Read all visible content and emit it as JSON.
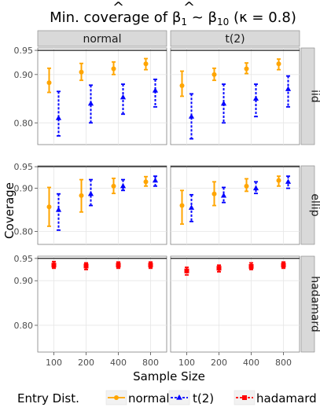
{
  "chart_data": {
    "type": "scatter",
    "title": "Min. coverage of β̂1 ~ β̂10 (κ = 0.8)",
    "title_parts": {
      "prefix": "Min. coverage of ",
      "beta": "β",
      "hat": "^",
      "sub_first": "1",
      "tilde": " ~ ",
      "sub_last": "10",
      "suffix": " (κ = 0.8)"
    },
    "xlabel": "Sample Size",
    "ylabel": "Coverage",
    "x_categories": [
      "100",
      "200",
      "400",
      "800"
    ],
    "ylim": [
      0.75,
      0.97
    ],
    "y_ticks": [
      0.8,
      0.9,
      0.95
    ],
    "y_tick_labels": [
      "0.80",
      "0.90",
      "0.95"
    ],
    "reference_line": 0.95,
    "grid": true,
    "columns": [
      "normal",
      "t(2)"
    ],
    "rows": [
      "iid",
      "ellip",
      "hadamard"
    ],
    "legend": {
      "title": "Entry Dist.",
      "position": "bottom",
      "entries": [
        {
          "name": "normal",
          "color": "#FFA500",
          "marker": "circle",
          "linestyle": "solid"
        },
        {
          "name": "t(2)",
          "color": "#0000FF",
          "marker": "triangle",
          "linestyle": "dashed"
        },
        {
          "name": "hadamard",
          "color": "#FF0000",
          "marker": "square",
          "linestyle": "dashed"
        }
      ]
    },
    "panels": [
      {
        "row": "iid",
        "col": "normal",
        "series": [
          {
            "name": "normal",
            "points": [
              [
                0.883,
                0.863,
                0.913
              ],
              [
                0.905,
                0.888,
                0.923
              ],
              [
                0.912,
                0.9,
                0.926
              ],
              [
                0.922,
                0.91,
                0.933
              ]
            ]
          },
          {
            "name": "t(2)",
            "points": [
              [
                0.81,
                0.773,
                0.865
              ],
              [
                0.84,
                0.8,
                0.878
              ],
              [
                0.853,
                0.818,
                0.88
              ],
              [
                0.867,
                0.833,
                0.89
              ]
            ]
          }
        ]
      },
      {
        "row": "iid",
        "col": "t(2)",
        "series": [
          {
            "name": "normal",
            "points": [
              [
                0.877,
                0.855,
                0.907
              ],
              [
                0.9,
                0.888,
                0.913
              ],
              [
                0.912,
                0.902,
                0.924
              ],
              [
                0.922,
                0.91,
                0.932
              ]
            ]
          },
          {
            "name": "t(2)",
            "points": [
              [
                0.813,
                0.767,
                0.86
              ],
              [
                0.84,
                0.8,
                0.88
              ],
              [
                0.85,
                0.813,
                0.88
              ],
              [
                0.87,
                0.833,
                0.897
              ]
            ]
          }
        ]
      },
      {
        "row": "ellip",
        "col": "normal",
        "series": [
          {
            "name": "normal",
            "points": [
              [
                0.857,
                0.812,
                0.902
              ],
              [
                0.883,
                0.845,
                0.92
              ],
              [
                0.905,
                0.888,
                0.923
              ],
              [
                0.915,
                0.905,
                0.927
              ]
            ]
          },
          {
            "name": "t(2)",
            "points": [
              [
                0.85,
                0.803,
                0.887
              ],
              [
                0.887,
                0.86,
                0.92
              ],
              [
                0.905,
                0.895,
                0.92
              ],
              [
                0.918,
                0.905,
                0.928
              ]
            ]
          }
        ]
      },
      {
        "row": "ellip",
        "col": "t(2)",
        "series": [
          {
            "name": "normal",
            "points": [
              [
                0.86,
                0.817,
                0.895
              ],
              [
                0.887,
                0.86,
                0.915
              ],
              [
                0.905,
                0.893,
                0.922
              ],
              [
                0.918,
                0.905,
                0.928
              ]
            ]
          },
          {
            "name": "t(2)",
            "points": [
              [
                0.855,
                0.823,
                0.885
              ],
              [
                0.883,
                0.867,
                0.902
              ],
              [
                0.9,
                0.888,
                0.915
              ],
              [
                0.915,
                0.9,
                0.928
              ]
            ]
          }
        ]
      },
      {
        "row": "hadamard",
        "col": "normal",
        "series": [
          {
            "name": "hadamard",
            "points": [
              [
                0.935,
                0.928,
                0.943
              ],
              [
                0.933,
                0.925,
                0.94
              ],
              [
                0.935,
                0.928,
                0.942
              ],
              [
                0.935,
                0.928,
                0.942
              ]
            ]
          }
        ]
      },
      {
        "row": "hadamard",
        "col": "t(2)",
        "series": [
          {
            "name": "hadamard",
            "points": [
              [
                0.922,
                0.913,
                0.93
              ],
              [
                0.928,
                0.92,
                0.935
              ],
              [
                0.932,
                0.925,
                0.94
              ],
              [
                0.935,
                0.928,
                0.942
              ]
            ]
          }
        ]
      }
    ]
  }
}
